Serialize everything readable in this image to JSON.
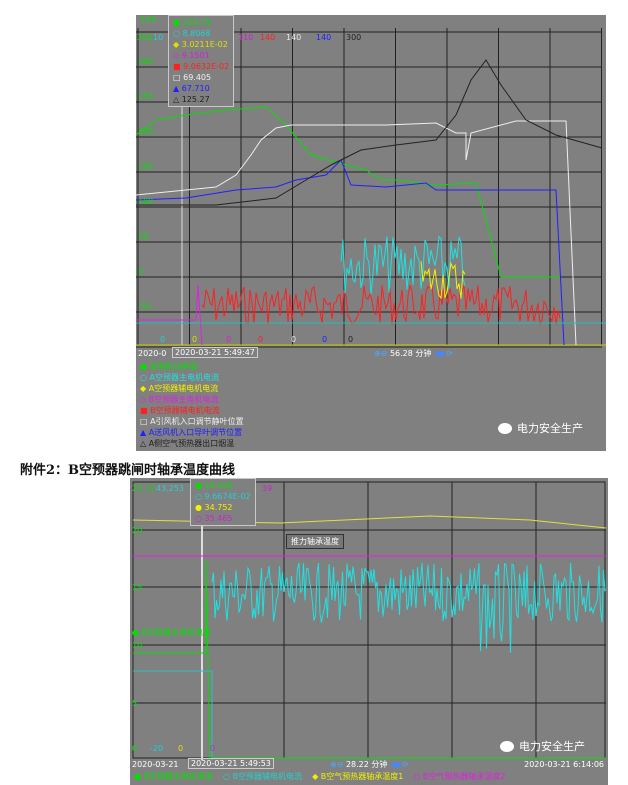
{
  "top_chart": {
    "axis_headers": [
      {
        "t": "350",
        "c": "#00e000"
      },
      {
        "t": "10",
        "c": "#20d0d0"
      },
      {
        "t": "110",
        "c": "#d020d0"
      },
      {
        "t": "140",
        "c": "#ff2020"
      },
      {
        "t": "140",
        "c": "#e8e8e8"
      },
      {
        "t": "140",
        "c": "#2020ff"
      },
      {
        "t": "300",
        "c": "#202020"
      }
    ],
    "y_ticks": [
      "300",
      "250",
      "200",
      "150",
      "100",
      "50",
      "0",
      "-50",
      "-100"
    ],
    "bottom_mins": [
      {
        "t": "0",
        "c": "#20d0d0"
      },
      {
        "t": "0",
        "c": "#e0e000"
      },
      {
        "t": "0",
        "c": "#d020d0"
      },
      {
        "t": "0",
        "c": "#ff2020"
      },
      {
        "t": "0",
        "c": "#e8e8e8"
      },
      {
        "t": "0",
        "c": "#2020ff"
      },
      {
        "t": "0",
        "c": "#202020"
      }
    ],
    "cursor_values": [
      {
        "v": "226.79",
        "c": "#00e000",
        "m": "●"
      },
      {
        "v": "8.8068",
        "c": "#20d0d0",
        "m": "○"
      },
      {
        "v": "3.0211E-02",
        "c": "#e0e000",
        "m": "◆"
      },
      {
        "v": "9.1501",
        "c": "#d020d0",
        "m": "◇"
      },
      {
        "v": "9.0632E-02",
        "c": "#ff2020",
        "m": "■"
      },
      {
        "v": "69.405",
        "c": "#f0f0f0",
        "m": "□"
      },
      {
        "v": "67.710",
        "c": "#2020ff",
        "m": "▲"
      },
      {
        "v": "125.27",
        "c": "#202020",
        "m": "△"
      }
    ],
    "start_time": "2020-0",
    "cursor_time": "2020-03-21 5:49:47",
    "span": "56.28 分钟",
    "legend": [
      {
        "l": "发电机功率值",
        "c": "#00e000",
        "m": "●"
      },
      {
        "l": "A空预器主电机电流",
        "c": "#20e0e0",
        "m": "○"
      },
      {
        "l": "A空预器辅电机电流",
        "c": "#f0f000",
        "m": "◆"
      },
      {
        "l": "B空预器主电机电流",
        "c": "#e020e0",
        "m": "◇"
      },
      {
        "l": "B空预器辅电机电流",
        "c": "#ff2020",
        "m": "■"
      },
      {
        "l": "A引风机入口调节静叶位置",
        "c": "#f0f0f0",
        "m": "□"
      },
      {
        "l": "A送风机入口导叶调节位置",
        "c": "#2020ff",
        "m": "▲"
      },
      {
        "l": "A侧空气预热器出口烟温",
        "c": "#202020",
        "m": "△"
      }
    ]
  },
  "caption": "附件2：B空预器跳闸时轴承温度曲线",
  "bottom_chart": {
    "axis_headers": [
      {
        "t": "23.72",
        "c": "#00e000"
      },
      {
        "t": "43.253",
        "c": "#20d0d0"
      },
      {
        "t": "39",
        "c": "#d020d0"
      }
    ],
    "y_ticks": [
      "20",
      "15",
      "10",
      "5"
    ],
    "bottom_mins": [
      {
        "t": "0",
        "c": "#00e000"
      },
      {
        "t": "-20",
        "c": "#20d0d0"
      },
      {
        "t": "0",
        "c": "#e0e000"
      },
      {
        "t": "0",
        "c": "#d020d0"
      }
    ],
    "cursor_values": [
      {
        "v": "10.100",
        "c": "#00e000",
        "m": "●"
      },
      {
        "v": "9.6674E-02",
        "c": "#20d0d0",
        "m": "○"
      },
      {
        "v": "34.752",
        "c": "#f0f000",
        "m": "●"
      },
      {
        "v": "35.465",
        "c": "#d020d0",
        "m": "○"
      }
    ],
    "annotation": "推力轴承温度",
    "series_label": "B空预器主电机电流",
    "start_time": "2020-03-21",
    "cursor_time": "2020-03-21 5:49:53",
    "span": "28.22 分钟",
    "end_time": "2020-03-21 6:14:06",
    "legend": [
      {
        "l": "B空预器主电机电流",
        "c": "#00e000",
        "m": "●"
      },
      {
        "l": "B空预器辅电机电流",
        "c": "#20d0d0",
        "m": "○"
      },
      {
        "l": "B空气预热器轴承温度1",
        "c": "#f0f000",
        "m": "◆"
      },
      {
        "l": "B空气预热器轴承温度2",
        "c": "#e020e0",
        "m": "○"
      }
    ]
  },
  "watermark": "电力安全生产"
}
